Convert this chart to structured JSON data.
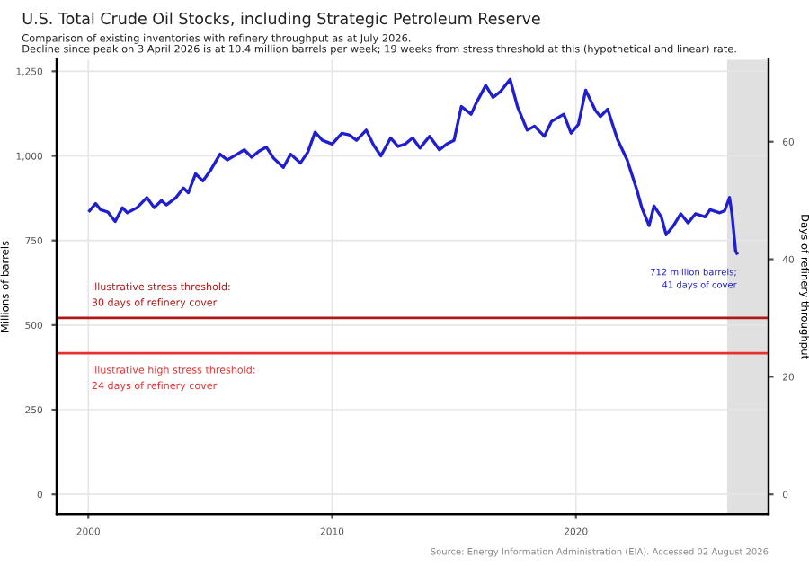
{
  "chart_data": {
    "type": "line",
    "title": "U.S. Total Crude Oil Stocks, including Strategic Petroleum Reserve",
    "subtitle": "Comparison of existing inventories with refinery throughput as at July 2026.\nDecline since peak on 3 April 2026 is at 10.4 million barrels per week; 19 weeks from stress threshold at this (hypothetical and linear) rate.",
    "ylabel": "Millions of barrels",
    "y2label": "Days of refinery throughput",
    "x": [
      2000.05,
      2000.3,
      2000.5,
      2000.8,
      2001.1,
      2001.4,
      2001.6,
      2002.0,
      2002.4,
      2002.7,
      2003.0,
      2003.2,
      2003.6,
      2003.9,
      2004.1,
      2004.4,
      2004.7,
      2005.0,
      2005.4,
      2005.7,
      2006.1,
      2006.4,
      2006.7,
      2007.0,
      2007.3,
      2007.6,
      2008.0,
      2008.3,
      2008.7,
      2009.0,
      2009.3,
      2009.6,
      2010.0,
      2010.4,
      2010.7,
      2011.0,
      2011.4,
      2011.7,
      2012.0,
      2012.4,
      2012.7,
      2013.0,
      2013.3,
      2013.6,
      2014.0,
      2014.4,
      2014.7,
      2015.0,
      2015.3,
      2015.7,
      2015.9,
      2016.3,
      2016.6,
      2016.9,
      2017.3,
      2017.6,
      2018.0,
      2018.3,
      2018.7,
      2019.0,
      2019.5,
      2019.8,
      2020.1,
      2020.4,
      2020.8,
      2021.0,
      2021.3,
      2021.7,
      2022.1,
      2022.5,
      2022.7,
      2023.0,
      2023.2,
      2023.5,
      2023.7,
      2024.0,
      2024.3,
      2024.6,
      2024.9,
      2025.3,
      2025.5,
      2025.9,
      2026.1,
      2026.3,
      2026.4,
      2026.55,
      2026.6
    ],
    "series": [
      {
        "color": "#1f1fd0",
        "values": [
          838,
          859,
          841,
          834,
          806,
          847,
          832,
          847,
          877,
          847,
          868,
          855,
          877,
          905,
          891,
          947,
          926,
          956,
          1005,
          988,
          1005,
          1018,
          996,
          1014,
          1026,
          993,
          966,
          1005,
          979,
          1011,
          1070,
          1046,
          1035,
          1067,
          1062,
          1046,
          1076,
          1032,
          1000,
          1053,
          1028,
          1035,
          1053,
          1023,
          1058,
          1018,
          1035,
          1046,
          1146,
          1123,
          1155,
          1208,
          1173,
          1190,
          1226,
          1146,
          1076,
          1088,
          1058,
          1102,
          1123,
          1067,
          1093,
          1194,
          1134,
          1116,
          1138,
          1049,
          988,
          899,
          847,
          794,
          852,
          820,
          767,
          794,
          829,
          802,
          829,
          820,
          841,
          832,
          838,
          877,
          829,
          718,
          712
        ]
      }
    ],
    "xlim": [
      1998.7,
      2027.9
    ],
    "xticks": [
      2000,
      2010,
      2020
    ],
    "ylim": [
      -58,
      1285
    ],
    "yticks": [
      0,
      250,
      500,
      750,
      {
        "value": 1000,
        "label": "1,000"
      },
      {
        "value": 1250,
        "label": "1,250"
      }
    ],
    "y2lim": [
      -3.34,
      74.0
    ],
    "y2ticks": [
      0,
      20,
      40,
      60
    ],
    "grid": true,
    "line_style": "solid",
    "ref_lines": [
      {
        "axis": "y2",
        "value": 30,
        "label": "Illustrative stress threshold:\n30 days of refinery cover",
        "color": "#b01818"
      },
      {
        "axis": "y2",
        "value": 24,
        "label": "Illustrative high stress threshold:\n24 days of refinery cover",
        "color": "#e83030"
      }
    ],
    "bands": [
      {
        "axis": "x",
        "from": 2026.2,
        "to": 2027.9,
        "color": "#e0e0e0"
      }
    ],
    "annotations": [
      {
        "text": "712 million barrels;\n41 days of cover",
        "x": 2026.6,
        "y": 712
      },
      "Source: Energy Information Administration (EIA). Accessed 02 August 2026"
    ]
  }
}
